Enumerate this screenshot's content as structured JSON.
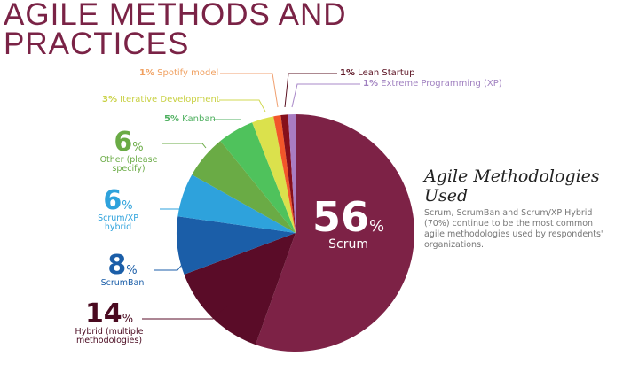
{
  "title": "AGILE METHODS AND PRACTICES",
  "chart_data": {
    "type": "pie",
    "title": "Agile Methodologies Used",
    "description": "Scrum, ScrumBan and Scrum/XP Hybrid (70%) continue to be the most common agile methodologies used by respondents' organizations.",
    "slices": [
      {
        "label": "Scrum",
        "value": 56,
        "color": "#7d2246"
      },
      {
        "label": "Hybrid (multiple methodologies)",
        "value": 14,
        "color": "#5a0c28"
      },
      {
        "label": "ScrumBan",
        "value": 8,
        "color": "#1b5ea8"
      },
      {
        "label": "Scrum/XP hybrid",
        "value": 6,
        "color": "#2ea2dc"
      },
      {
        "label": "Other (please specify)",
        "value": 6,
        "color": "#6aab45"
      },
      {
        "label": "Kanban",
        "value": 5,
        "color": "#4fc25c"
      },
      {
        "label": "Iterative Development",
        "value": 3,
        "color": "#dbe14c"
      },
      {
        "label": "Spotify model",
        "value": 1,
        "color": "#f2562a"
      },
      {
        "label": "Lean Startup",
        "value": 1,
        "color": "#860f1c"
      },
      {
        "label": "Extreme Programming (XP)",
        "value": 1,
        "color": "#a97cc2"
      }
    ],
    "value_labels": {
      "scrum": "56",
      "hybrid": "14",
      "scrumban": "8",
      "scrumxp": "6",
      "other": "6",
      "kanban": "5%",
      "iterative": "3%",
      "spotify": "1%",
      "lean": "1%",
      "xp": "1%"
    },
    "pct": "%"
  }
}
